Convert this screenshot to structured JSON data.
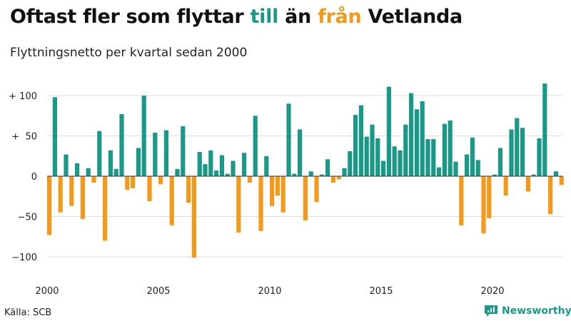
{
  "title": {
    "part1": "Oftast fler som flyttar ",
    "part2": "till",
    "part3": " än ",
    "part4": "från",
    "part5": " Vetlanda"
  },
  "subtitle": "Flyttningsnetto per kvartal sedan 2000",
  "source": "Källa: SCB",
  "brand": {
    "name": "Newsworthy",
    "icon": "newsworthy-logo-icon"
  },
  "colors": {
    "positive": "#1a9988",
    "negative": "#f39a1c",
    "grid": "#dddddd",
    "zero_line": "#333333"
  },
  "chart_data": {
    "type": "bar",
    "title": "Oftast fler som flyttar till än från Vetlanda",
    "subtitle": "Flyttningsnetto per kvartal sedan 2000",
    "xlabel": "",
    "ylabel": "",
    "ylim": [
      -105,
      120
    ],
    "grid": true,
    "x_ticks": [
      {
        "label": "2000",
        "year": 2000
      },
      {
        "label": "2005",
        "year": 2005
      },
      {
        "label": "2010",
        "year": 2010
      },
      {
        "label": "2015",
        "year": 2015
      },
      {
        "label": "2020",
        "year": 2020
      }
    ],
    "y_ticks": [
      {
        "value": 100,
        "label": "+ 100"
      },
      {
        "value": 50,
        "label": "+  50"
      },
      {
        "value": 0,
        "label": "0"
      },
      {
        "value": -50,
        "label": "−50"
      },
      {
        "value": -100,
        "label": "−100"
      }
    ],
    "start_year": 2000,
    "periods_per_year": 4,
    "values": [
      -73,
      98,
      -45,
      27,
      -37,
      16,
      -53,
      10,
      -8,
      56,
      -80,
      32,
      9,
      77,
      -17,
      -15,
      35,
      100,
      -31,
      54,
      -10,
      57,
      -61,
      9,
      62,
      -33,
      -101,
      30,
      15,
      32,
      7,
      26,
      3,
      19,
      -70,
      29,
      -8,
      75,
      -68,
      25,
      -37,
      -24,
      -45,
      90,
      3,
      58,
      -55,
      6,
      -32,
      2,
      21,
      -8,
      -4,
      10,
      31,
      76,
      88,
      49,
      64,
      47,
      19,
      111,
      37,
      32,
      64,
      103,
      83,
      93,
      46,
      46,
      11,
      65,
      69,
      18,
      -61,
      27,
      48,
      20,
      -71,
      -52,
      2,
      35,
      -24,
      58,
      72,
      60,
      -19,
      2,
      47,
      115,
      -47,
      6,
      -11
    ]
  }
}
